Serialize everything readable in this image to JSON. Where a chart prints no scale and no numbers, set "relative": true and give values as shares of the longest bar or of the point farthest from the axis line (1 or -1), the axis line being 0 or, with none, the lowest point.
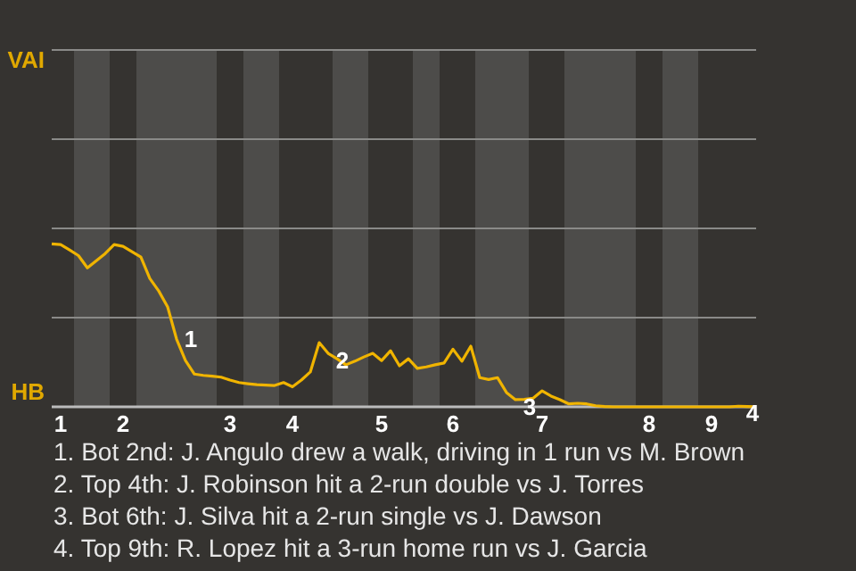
{
  "chart_data": {
    "type": "line",
    "relative": true,
    "ylim": [
      0,
      2.19
    ],
    "categories": [
      null,
      "1",
      null,
      null,
      null,
      null,
      null,
      null,
      "2",
      null,
      null,
      null,
      null,
      null,
      null,
      null,
      null,
      null,
      null,
      null,
      "3",
      null,
      null,
      null,
      null,
      null,
      null,
      "4",
      null,
      null,
      null,
      null,
      null,
      null,
      null,
      null,
      null,
      "5",
      null,
      null,
      null,
      null,
      null,
      null,
      null,
      "6",
      null,
      null,
      null,
      null,
      null,
      null,
      null,
      null,
      null,
      "7",
      null,
      null,
      null,
      null,
      null,
      null,
      null,
      null,
      null,
      null,
      null,
      "8",
      null,
      null,
      null,
      null,
      null,
      null,
      "9",
      null,
      null,
      null,
      null,
      null
    ],
    "series": [
      {
        "color": "#f0b400",
        "values": [
          1,
          0.996,
          0.963,
          0.928,
          0.853,
          0.897,
          0.941,
          0.996,
          0.985,
          0.952,
          0.919,
          0.788,
          0.711,
          0.613,
          0.416,
          0.284,
          0.201,
          0.193,
          0.188,
          0.182,
          0.164,
          0.149,
          0.142,
          0.136,
          0.133,
          0.131,
          0.149,
          0.123,
          0.164,
          0.214,
          0.394,
          0.328,
          0.295,
          0.258,
          0.28,
          0.306,
          0.328,
          0.284,
          0.344,
          0.252,
          0.295,
          0.236,
          0.245,
          0.258,
          0.269,
          0.354,
          0.28,
          0.372,
          0.179,
          0.168,
          0.179,
          0.088,
          0.044,
          0.046,
          0.053,
          0.098,
          0.066,
          0.044,
          0.018,
          0.022,
          0.018,
          0.007,
          0.002,
          0,
          0,
          0,
          0,
          0,
          0,
          0,
          0,
          0,
          0,
          0,
          0,
          0,
          0,
          0.004,
          0.002,
          0
        ]
      }
    ],
    "grid": "y",
    "marker": "none",
    "line_style": "solid",
    "annotations": [
      "VAI",
      "HB",
      "1",
      "2",
      "3",
      "4",
      "1. Bot 2nd: J. Angulo drew a walk, driving in 1 run vs M. Brown",
      "2. Top 4th: J. Robinson hit a 2-run double vs J. Torres",
      "3. Bot 6th: J. Silva hit a 2-run single vs J. Dawson",
      "4. Top 9th: R. Lopez hit a 3-run home run vs J. Garcia"
    ]
  }
}
